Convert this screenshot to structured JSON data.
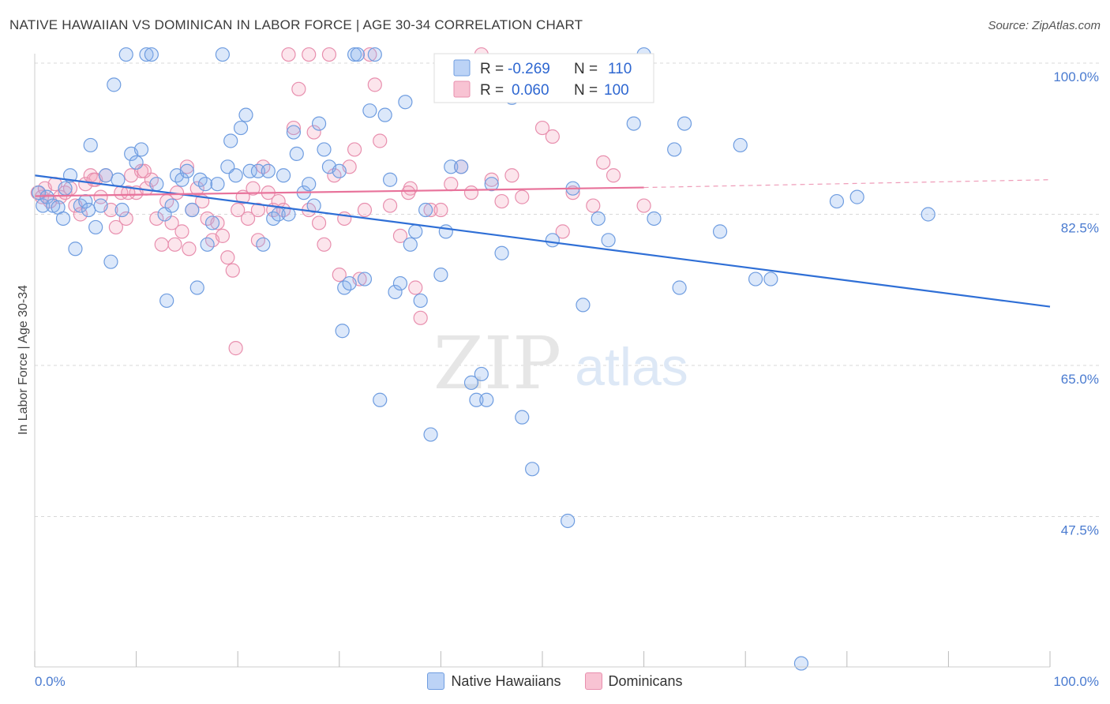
{
  "header": {
    "title": "NATIVE HAWAIIAN VS DOMINICAN IN LABOR FORCE | AGE 30-34 CORRELATION CHART",
    "source": "Source: ZipAtlas.com"
  },
  "watermark": {
    "zip": "ZIP",
    "atlas": "atlas"
  },
  "legend_box": {
    "rows": [
      {
        "r_label": "R =",
        "r_value": "-0.269",
        "n_label": "N =",
        "n_value": "110",
        "color": "#8ab4f0"
      },
      {
        "r_label": "R =",
        "r_value": "0.060",
        "n_label": "N =",
        "n_value": "100",
        "color": "#f4a8c0"
      }
    ]
  },
  "bottom_legend": {
    "items": [
      {
        "label": "Native Hawaiians",
        "color": "#a9c8f5",
        "border": "#6f9de0"
      },
      {
        "label": "Dominicans",
        "color": "#f8c3d3",
        "border": "#e88fae"
      }
    ]
  },
  "colors": {
    "blue_fill": "rgba(140,180,240,0.30)",
    "blue_stroke": "#6f9de0",
    "blue_line": "#2f6fd6",
    "pink_fill": "rgba(244,168,192,0.30)",
    "pink_stroke": "#e88fae",
    "pink_line": "#e8739b",
    "grid": "#d8d8d8",
    "tick_text": "#4a7bd0"
  },
  "chart_data": {
    "type": "scatter",
    "title": "NATIVE HAWAIIAN VS DOMINICAN IN LABOR FORCE | AGE 30-34 CORRELATION CHART",
    "xlabel": "",
    "ylabel": "In Labor Force | Age 30-34",
    "xlim": [
      0,
      100
    ],
    "ylim": [
      29,
      101
    ],
    "x_tick_labels": [
      "0.0%",
      "100.0%"
    ],
    "y_ticks": [
      100,
      82.5,
      65,
      47.5
    ],
    "y_tick_labels": [
      "100.0%",
      "82.5%",
      "65.0%",
      "47.5%"
    ],
    "grid": true,
    "legend_position": "top-center",
    "series": [
      {
        "name": "Native Hawaiians",
        "r": -0.269,
        "n": 110,
        "trend": {
          "x": [
            0,
            100
          ],
          "y": [
            87.0,
            71.8
          ]
        },
        "points": [
          [
            0.4,
            85
          ],
          [
            0.8,
            83.5
          ],
          [
            1.2,
            84.5
          ],
          [
            1.8,
            83.5
          ],
          [
            2.3,
            83.3
          ],
          [
            2.8,
            82
          ],
          [
            3.0,
            85.5
          ],
          [
            3.5,
            87
          ],
          [
            4.0,
            78.5
          ],
          [
            4.5,
            83.5
          ],
          [
            5.0,
            84
          ],
          [
            5.5,
            90.5
          ],
          [
            5.3,
            83
          ],
          [
            6.0,
            81
          ],
          [
            6.5,
            83.5
          ],
          [
            7.0,
            87
          ],
          [
            7.5,
            77
          ],
          [
            7.8,
            97.5
          ],
          [
            8.2,
            86.5
          ],
          [
            8.6,
            83
          ],
          [
            9.0,
            101
          ],
          [
            9.5,
            89.5
          ],
          [
            10.0,
            88.5
          ],
          [
            10.5,
            90
          ],
          [
            11.0,
            101
          ],
          [
            11.5,
            101
          ],
          [
            12.0,
            86
          ],
          [
            12.8,
            82.5
          ],
          [
            13.0,
            72.5
          ],
          [
            13.5,
            83.5
          ],
          [
            14.0,
            87
          ],
          [
            14.5,
            86.5
          ],
          [
            15.0,
            87.5
          ],
          [
            15.5,
            83
          ],
          [
            16.0,
            74
          ],
          [
            16.3,
            86.5
          ],
          [
            16.8,
            86
          ],
          [
            17.0,
            79
          ],
          [
            17.5,
            81.5
          ],
          [
            18.0,
            86
          ],
          [
            18.5,
            101
          ],
          [
            19.0,
            88
          ],
          [
            19.3,
            91
          ],
          [
            19.8,
            87
          ],
          [
            20.3,
            92.5
          ],
          [
            20.8,
            94
          ],
          [
            21.2,
            87.5
          ],
          [
            22.0,
            87.5
          ],
          [
            22.5,
            79
          ],
          [
            23.0,
            87.5
          ],
          [
            23.5,
            82
          ],
          [
            24.0,
            82.5
          ],
          [
            24.5,
            87
          ],
          [
            25.0,
            82.5
          ],
          [
            25.5,
            92
          ],
          [
            25.8,
            89.5
          ],
          [
            26.5,
            85
          ],
          [
            27.0,
            86
          ],
          [
            27.5,
            83.5
          ],
          [
            28.0,
            93
          ],
          [
            28.5,
            90
          ],
          [
            29.0,
            88
          ],
          [
            30.0,
            87.5
          ],
          [
            30.3,
            69
          ],
          [
            30.5,
            74
          ],
          [
            31.0,
            74.5
          ],
          [
            31.5,
            101
          ],
          [
            31.8,
            101
          ],
          [
            32.5,
            75
          ],
          [
            33.0,
            94.5
          ],
          [
            33.5,
            101
          ],
          [
            34.0,
            61
          ],
          [
            34.5,
            94
          ],
          [
            35.0,
            86.5
          ],
          [
            35.5,
            73.5
          ],
          [
            36.0,
            74.5
          ],
          [
            36.5,
            95.5
          ],
          [
            37.0,
            79
          ],
          [
            37.5,
            80.5
          ],
          [
            38.0,
            72.5
          ],
          [
            38.5,
            83
          ],
          [
            39.0,
            57
          ],
          [
            40.0,
            75.5
          ],
          [
            40.5,
            80.5
          ],
          [
            41.0,
            88
          ],
          [
            42.0,
            88
          ],
          [
            43.0,
            63
          ],
          [
            43.5,
            61
          ],
          [
            44.0,
            64
          ],
          [
            44.5,
            61
          ],
          [
            45.0,
            86
          ],
          [
            46.0,
            78
          ],
          [
            47.0,
            96
          ],
          [
            48.0,
            59
          ],
          [
            49.0,
            53
          ],
          [
            51.0,
            79.5
          ],
          [
            52.5,
            47
          ],
          [
            53.0,
            85.5
          ],
          [
            54.0,
            72
          ],
          [
            55.5,
            82
          ],
          [
            56.5,
            79.5
          ],
          [
            59.0,
            93
          ],
          [
            60.0,
            101
          ],
          [
            61.0,
            82
          ],
          [
            63.0,
            90
          ],
          [
            63.5,
            74
          ],
          [
            64.0,
            93
          ],
          [
            67.5,
            80.5
          ],
          [
            69.5,
            90.5
          ],
          [
            71.0,
            75
          ],
          [
            72.5,
            75
          ],
          [
            75.5,
            30.5
          ],
          [
            79.0,
            84
          ],
          [
            81.0,
            84.5
          ],
          [
            88.0,
            82.5
          ]
        ]
      },
      {
        "name": "Dominicans",
        "r": 0.06,
        "n": 100,
        "trend": {
          "x": [
            0,
            60
          ],
          "y": [
            84.6,
            85.6
          ]
        },
        "trend_dashed": {
          "x": [
            60,
            100
          ],
          "y": [
            85.6,
            86.5
          ]
        },
        "points": [
          [
            0.3,
            85
          ],
          [
            0.7,
            84.5
          ],
          [
            1.0,
            85.5
          ],
          [
            1.5,
            84
          ],
          [
            2.0,
            86
          ],
          [
            2.5,
            84.5
          ],
          [
            3.0,
            85
          ],
          [
            3.5,
            85.5
          ],
          [
            4.0,
            83.5
          ],
          [
            4.5,
            82.5
          ],
          [
            5.0,
            86
          ],
          [
            5.5,
            87
          ],
          [
            6.0,
            86.5
          ],
          [
            6.5,
            84.5
          ],
          [
            7.0,
            87
          ],
          [
            7.5,
            83
          ],
          [
            8.0,
            81
          ],
          [
            8.5,
            85
          ],
          [
            9.0,
            82
          ],
          [
            9.5,
            87
          ],
          [
            10.0,
            85
          ],
          [
            10.5,
            87.5
          ],
          [
            11.0,
            85.5
          ],
          [
            11.5,
            86.5
          ],
          [
            12.0,
            82
          ],
          [
            12.5,
            79
          ],
          [
            13.0,
            84
          ],
          [
            13.5,
            81.5
          ],
          [
            14.0,
            85
          ],
          [
            14.5,
            80.5
          ],
          [
            15.0,
            88
          ],
          [
            15.5,
            83
          ],
          [
            16.0,
            85.5
          ],
          [
            16.5,
            84
          ],
          [
            17.0,
            82
          ],
          [
            17.5,
            79.5
          ],
          [
            18.0,
            81.5
          ],
          [
            18.5,
            80
          ],
          [
            19.0,
            77.5
          ],
          [
            19.5,
            76
          ],
          [
            20.0,
            83
          ],
          [
            20.5,
            84.5
          ],
          [
            21.0,
            82
          ],
          [
            21.5,
            85.5
          ],
          [
            22.0,
            79.5
          ],
          [
            22.5,
            88
          ],
          [
            23.0,
            85
          ],
          [
            23.5,
            83
          ],
          [
            24.0,
            84
          ],
          [
            25.0,
            101
          ],
          [
            25.5,
            92.5
          ],
          [
            26.0,
            97
          ],
          [
            27.0,
            101
          ],
          [
            27.5,
            92
          ],
          [
            28.0,
            81.5
          ],
          [
            28.5,
            79
          ],
          [
            29.0,
            101
          ],
          [
            29.5,
            87
          ],
          [
            30.0,
            75.5
          ],
          [
            30.5,
            82
          ],
          [
            31.0,
            88
          ],
          [
            31.5,
            90
          ],
          [
            32.0,
            75
          ],
          [
            32.5,
            83
          ],
          [
            33.0,
            101
          ],
          [
            33.5,
            97.5
          ],
          [
            34.0,
            91
          ],
          [
            35.0,
            83.5
          ],
          [
            36.0,
            80
          ],
          [
            37.0,
            85.5
          ],
          [
            37.5,
            74
          ],
          [
            38.0,
            70.5
          ],
          [
            39.0,
            83
          ],
          [
            40.0,
            83
          ],
          [
            41.0,
            86
          ],
          [
            42.0,
            88
          ],
          [
            43.0,
            85
          ],
          [
            44.0,
            101
          ],
          [
            45.0,
            86.5
          ],
          [
            46.0,
            84
          ],
          [
            47.0,
            87
          ],
          [
            48.0,
            84.5
          ],
          [
            50.0,
            92.5
          ],
          [
            51.0,
            91.5
          ],
          [
            52.0,
            80.5
          ],
          [
            53.0,
            85
          ],
          [
            55.0,
            83.5
          ],
          [
            56.0,
            88.5
          ],
          [
            57.0,
            87
          ],
          [
            60.0,
            83.5
          ],
          [
            19.8,
            67
          ],
          [
            36.8,
            85
          ],
          [
            15.2,
            78.5
          ],
          [
            27.0,
            83
          ],
          [
            22.0,
            83
          ],
          [
            10.8,
            87.5
          ],
          [
            5.8,
            86.5
          ],
          [
            9.2,
            85
          ],
          [
            13.8,
            79
          ],
          [
            24.5,
            83
          ]
        ]
      }
    ]
  }
}
